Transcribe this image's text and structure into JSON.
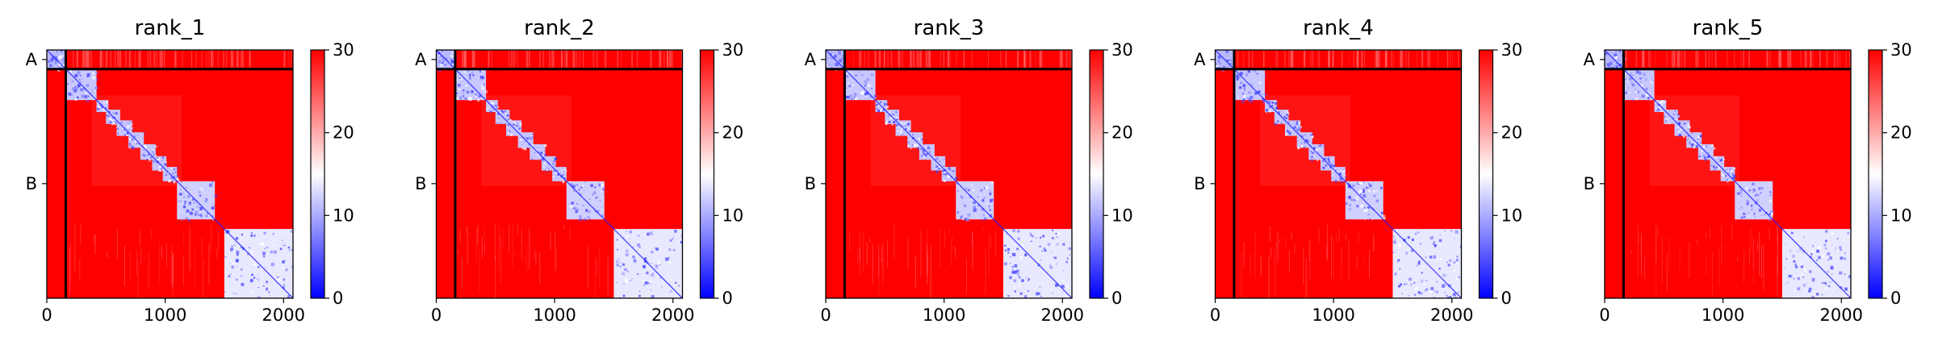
{
  "colors": {
    "cmap_low": "#0000ff",
    "cmap_mid": "#ffffff",
    "cmap_high": "#ff0000",
    "chain_divider": "#000000"
  },
  "chart_data": [
    {
      "type": "heatmap",
      "title": "rank_1",
      "xlabel": "",
      "ylabel": "",
      "x_range": [
        0,
        2080
      ],
      "y_range": [
        0,
        2080
      ],
      "xticks": [
        0,
        1000,
        2000
      ],
      "xtick_labels": [
        "0",
        "1000",
        "2000"
      ],
      "yticks": [
        {
          "value": 80,
          "label": "A"
        },
        {
          "value": 1120,
          "label": "B"
        }
      ],
      "chain_boundary": 160,
      "color_scale": {
        "min": 0,
        "max": 30,
        "ticks": [
          0,
          10,
          20,
          30
        ],
        "tick_labels": [
          "0",
          "10",
          "20",
          "30"
        ]
      },
      "low_error_blocks": [
        [
          0,
          160
        ],
        [
          160,
          420
        ],
        [
          420,
          1100
        ],
        [
          1100,
          1420
        ],
        [
          1500,
          2080
        ]
      ],
      "noise_seed": 11
    },
    {
      "type": "heatmap",
      "title": "rank_2",
      "xlabel": "",
      "ylabel": "",
      "x_range": [
        0,
        2080
      ],
      "y_range": [
        0,
        2080
      ],
      "xticks": [
        0,
        1000,
        2000
      ],
      "xtick_labels": [
        "0",
        "1000",
        "2000"
      ],
      "yticks": [
        {
          "value": 80,
          "label": "A"
        },
        {
          "value": 1120,
          "label": "B"
        }
      ],
      "chain_boundary": 160,
      "color_scale": {
        "min": 0,
        "max": 30,
        "ticks": [
          0,
          10,
          20,
          30
        ],
        "tick_labels": [
          "0",
          "10",
          "20",
          "30"
        ]
      },
      "low_error_blocks": [
        [
          0,
          160
        ],
        [
          160,
          420
        ],
        [
          420,
          1100
        ],
        [
          1100,
          1420
        ],
        [
          1500,
          2080
        ]
      ],
      "noise_seed": 23
    },
    {
      "type": "heatmap",
      "title": "rank_3",
      "xlabel": "",
      "ylabel": "",
      "x_range": [
        0,
        2080
      ],
      "y_range": [
        0,
        2080
      ],
      "xticks": [
        0,
        1000,
        2000
      ],
      "xtick_labels": [
        "0",
        "1000",
        "2000"
      ],
      "yticks": [
        {
          "value": 80,
          "label": "A"
        },
        {
          "value": 1120,
          "label": "B"
        }
      ],
      "chain_boundary": 160,
      "color_scale": {
        "min": 0,
        "max": 30,
        "ticks": [
          0,
          10,
          20,
          30
        ],
        "tick_labels": [
          "0",
          "10",
          "20",
          "30"
        ]
      },
      "low_error_blocks": [
        [
          0,
          160
        ],
        [
          160,
          420
        ],
        [
          420,
          1100
        ],
        [
          1100,
          1420
        ],
        [
          1500,
          2080
        ]
      ],
      "noise_seed": 37
    },
    {
      "type": "heatmap",
      "title": "rank_4",
      "xlabel": "",
      "ylabel": "",
      "x_range": [
        0,
        2080
      ],
      "y_range": [
        0,
        2080
      ],
      "xticks": [
        0,
        1000,
        2000
      ],
      "xtick_labels": [
        "0",
        "1000",
        "2000"
      ],
      "yticks": [
        {
          "value": 80,
          "label": "A"
        },
        {
          "value": 1120,
          "label": "B"
        }
      ],
      "chain_boundary": 160,
      "color_scale": {
        "min": 0,
        "max": 30,
        "ticks": [
          0,
          10,
          20,
          30
        ],
        "tick_labels": [
          "0",
          "10",
          "20",
          "30"
        ]
      },
      "low_error_blocks": [
        [
          0,
          160
        ],
        [
          160,
          420
        ],
        [
          420,
          1100
        ],
        [
          1100,
          1420
        ],
        [
          1500,
          2080
        ]
      ],
      "noise_seed": 41
    },
    {
      "type": "heatmap",
      "title": "rank_5",
      "xlabel": "",
      "ylabel": "",
      "x_range": [
        0,
        2080
      ],
      "y_range": [
        0,
        2080
      ],
      "xticks": [
        0,
        1000,
        2000
      ],
      "xtick_labels": [
        "0",
        "1000",
        "2000"
      ],
      "yticks": [
        {
          "value": 80,
          "label": "A"
        },
        {
          "value": 1120,
          "label": "B"
        }
      ],
      "chain_boundary": 160,
      "color_scale": {
        "min": 0,
        "max": 30,
        "ticks": [
          0,
          10,
          20,
          30
        ],
        "tick_labels": [
          "0",
          "10",
          "20",
          "30"
        ]
      },
      "low_error_blocks": [
        [
          0,
          160
        ],
        [
          160,
          420
        ],
        [
          420,
          1100
        ],
        [
          1100,
          1420
        ],
        [
          1500,
          2080
        ]
      ],
      "noise_seed": 53
    }
  ]
}
